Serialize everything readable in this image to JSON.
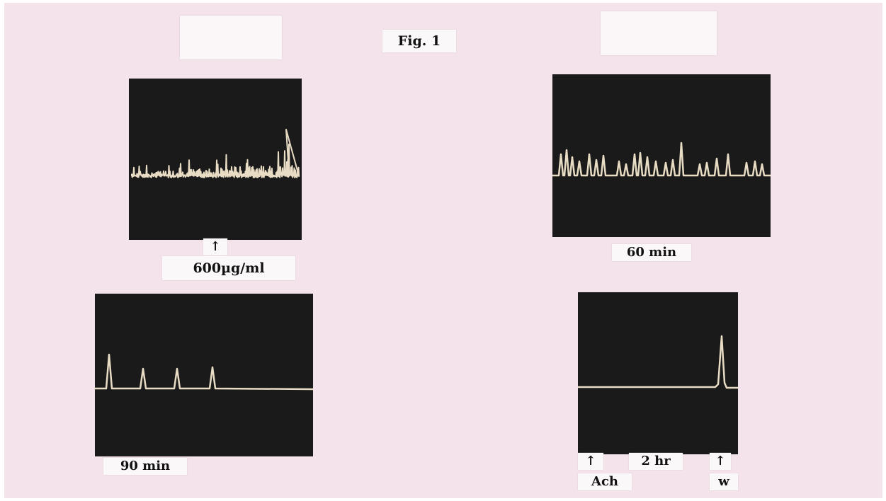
{
  "figure": {
    "title": "Fig. 1",
    "panels": [
      {
        "label": "600µg/ml",
        "marker": "↑"
      },
      {
        "label": "60 min"
      },
      {
        "label": "90 min"
      },
      {
        "time_label": "2 hr",
        "left_marker": "↑",
        "left_label": "Ach",
        "right_marker": "↑",
        "right_label": "w"
      }
    ]
  },
  "colors": {
    "paper": "#f5e3ec",
    "panel": "#1b1a1a",
    "trace": "#e8dcc4",
    "label_bg": "#fbf8f9"
  }
}
